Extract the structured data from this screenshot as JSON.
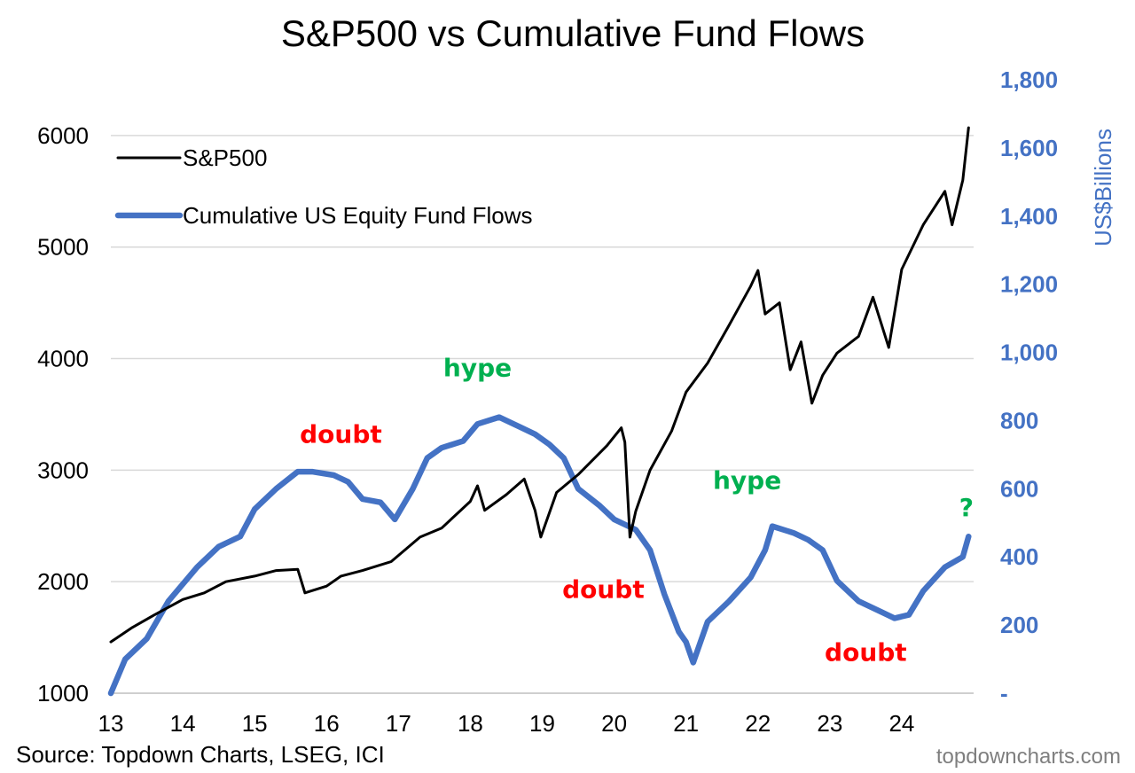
{
  "title": "S&P500 vs Cumulative Fund Flows",
  "source": "Source: Topdown Charts, LSEG, ICI",
  "brand": "topdowncharts.com",
  "chart_data": {
    "type": "line",
    "title": "S&P500 vs Cumulative Fund Flows",
    "x_ticks": [
      "13",
      "14",
      "15",
      "16",
      "17",
      "18",
      "19",
      "20",
      "21",
      "22",
      "23",
      "24"
    ],
    "x_ticks_values": [
      2013,
      2014,
      2015,
      2016,
      2017,
      2018,
      2019,
      2020,
      2021,
      2022,
      2023,
      2024
    ],
    "xlim": [
      2013,
      2025
    ],
    "y_left": {
      "label": "",
      "lim": [
        1000,
        6500
      ],
      "ticks": [
        1000,
        2000,
        3000,
        4000,
        5000,
        6000
      ],
      "tick_labels": [
        "1000",
        "2000",
        "3000",
        "4000",
        "5000",
        "6000"
      ]
    },
    "y_right": {
      "label": "US$Billions",
      "lim": [
        0,
        1800
      ],
      "ticks": [
        0,
        200,
        400,
        600,
        800,
        1000,
        1200,
        1400,
        1600,
        1800
      ],
      "tick_labels": [
        "-",
        "200",
        "400",
        "600",
        "800",
        "1,000",
        "1,200",
        "1,400",
        "1,600",
        "1,800"
      ]
    },
    "grid": true,
    "legend_position": "top-left",
    "series": [
      {
        "name": "S&P500",
        "axis": "left",
        "color": "#000000",
        "x": [
          2013.0,
          2013.3,
          2013.6,
          2014.0,
          2014.3,
          2014.6,
          2015.0,
          2015.3,
          2015.6,
          2015.7,
          2016.0,
          2016.2,
          2016.5,
          2016.9,
          2017.3,
          2017.6,
          2018.0,
          2018.1,
          2018.2,
          2018.5,
          2018.75,
          2018.9,
          2018.98,
          2019.2,
          2019.5,
          2019.9,
          2020.1,
          2020.15,
          2020.22,
          2020.3,
          2020.5,
          2020.8,
          2021.0,
          2021.3,
          2021.6,
          2021.9,
          2022.0,
          2022.1,
          2022.3,
          2022.45,
          2022.6,
          2022.75,
          2022.9,
          2023.1,
          2023.4,
          2023.6,
          2023.82,
          2024.0,
          2024.3,
          2024.6,
          2024.7,
          2024.85,
          2024.93
        ],
        "y": [
          1460,
          1590,
          1700,
          1840,
          1900,
          2000,
          2050,
          2100,
          2110,
          1900,
          1960,
          2050,
          2100,
          2180,
          2400,
          2480,
          2720,
          2860,
          2640,
          2780,
          2920,
          2640,
          2400,
          2800,
          2960,
          3220,
          3380,
          3250,
          2400,
          2630,
          3000,
          3350,
          3700,
          3960,
          4300,
          4650,
          4790,
          4400,
          4500,
          3900,
          4150,
          3600,
          3850,
          4050,
          4200,
          4550,
          4100,
          4800,
          5200,
          5500,
          5200,
          5600,
          6070
        ]
      },
      {
        "name": "Cumulative US Equity Fund Flows",
        "axis": "right",
        "color": "#4472C4",
        "x": [
          2013.0,
          2013.2,
          2013.5,
          2013.8,
          2014.2,
          2014.5,
          2014.8,
          2015.0,
          2015.3,
          2015.6,
          2015.8,
          2016.1,
          2016.3,
          2016.5,
          2016.75,
          2016.95,
          2017.2,
          2017.4,
          2017.6,
          2017.9,
          2018.1,
          2018.4,
          2018.7,
          2018.9,
          2019.1,
          2019.3,
          2019.5,
          2019.8,
          2020.0,
          2020.3,
          2020.5,
          2020.7,
          2020.9,
          2021.0,
          2021.1,
          2021.3,
          2021.6,
          2021.9,
          2022.1,
          2022.2,
          2022.5,
          2022.7,
          2022.9,
          2023.1,
          2023.4,
          2023.7,
          2023.9,
          2024.1,
          2024.3,
          2024.6,
          2024.85,
          2024.93
        ],
        "y": [
          0,
          100,
          160,
          270,
          370,
          430,
          460,
          540,
          600,
          650,
          650,
          640,
          620,
          570,
          560,
          510,
          600,
          690,
          720,
          740,
          790,
          810,
          780,
          760,
          730,
          690,
          600,
          550,
          510,
          480,
          420,
          290,
          180,
          150,
          90,
          210,
          270,
          340,
          420,
          490,
          470,
          450,
          420,
          330,
          270,
          240,
          220,
          230,
          300,
          370,
          400,
          460
        ]
      }
    ],
    "annotations": [
      {
        "text": "doubt",
        "color": "#FF0000",
        "x": 2016.2,
        "axis": "right",
        "y": 735
      },
      {
        "text": "hype",
        "color": "#00B050",
        "x": 2018.1,
        "axis": "right",
        "y": 930
      },
      {
        "text": "doubt",
        "color": "#FF0000",
        "x": 2019.85,
        "axis": "right",
        "y": 280
      },
      {
        "text": "hype",
        "color": "#00B050",
        "x": 2021.85,
        "axis": "right",
        "y": 600
      },
      {
        "text": "doubt",
        "color": "#FF0000",
        "x": 2023.5,
        "axis": "right",
        "y": 95
      },
      {
        "text": "?",
        "color": "#00B050",
        "x": 2024.9,
        "axis": "right",
        "y": 520
      }
    ]
  }
}
